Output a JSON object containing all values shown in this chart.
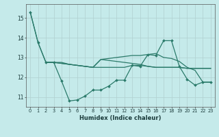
{
  "xlabel": "Humidex (Indice chaleur)",
  "xlim": [
    -0.5,
    23.5
  ],
  "ylim": [
    10.5,
    15.7
  ],
  "yticks": [
    11,
    12,
    13,
    14,
    15
  ],
  "xticks": [
    0,
    1,
    2,
    3,
    4,
    5,
    6,
    7,
    8,
    9,
    10,
    11,
    12,
    13,
    14,
    15,
    16,
    17,
    18,
    19,
    20,
    21,
    22,
    23
  ],
  "bg_color": "#c5eaea",
  "grid_color": "#b0d0d0",
  "line_color": "#2a7a6a",
  "lines": [
    {
      "x": [
        0,
        1,
        2,
        3,
        4,
        5,
        6,
        7,
        8,
        9,
        10,
        11,
        12,
        13,
        14,
        15,
        16,
        17,
        18,
        19,
        20,
        21,
        22,
        23
      ],
      "y": [
        15.3,
        13.75,
        12.75,
        12.75,
        11.8,
        10.8,
        10.85,
        11.05,
        11.35,
        11.35,
        11.55,
        11.85,
        11.85,
        12.6,
        12.55,
        13.15,
        13.1,
        13.85,
        13.85,
        12.55,
        11.9,
        11.6,
        11.75,
        11.75
      ],
      "marker": "D",
      "lw": 0.9
    },
    {
      "x": [
        0,
        1,
        2,
        3,
        4,
        5,
        6,
        7,
        8,
        9,
        10,
        11,
        12,
        13,
        14,
        15,
        16,
        17,
        18,
        19,
        20,
        21,
        22,
        23
      ],
      "y": [
        15.3,
        13.75,
        12.75,
        12.75,
        12.75,
        12.65,
        12.6,
        12.55,
        12.5,
        12.5,
        12.5,
        12.5,
        12.5,
        12.6,
        12.6,
        12.55,
        12.5,
        12.5,
        12.5,
        12.5,
        12.45,
        12.45,
        12.45,
        12.45
      ],
      "marker": null,
      "lw": 0.9
    },
    {
      "x": [
        2,
        3,
        4,
        5,
        6,
        7,
        8,
        9,
        10,
        11,
        12,
        13,
        14,
        15,
        16,
        17,
        18,
        19,
        20,
        21,
        22,
        23
      ],
      "y": [
        12.75,
        12.75,
        12.7,
        12.65,
        12.6,
        12.55,
        12.5,
        12.9,
        12.95,
        13.0,
        13.05,
        13.1,
        13.1,
        13.15,
        13.2,
        13.0,
        12.95,
        12.8,
        12.5,
        12.35,
        11.75,
        11.75
      ],
      "marker": null,
      "lw": 0.9
    },
    {
      "x": [
        2,
        3,
        4,
        5,
        6,
        7,
        8,
        9,
        10,
        11,
        12,
        13,
        14,
        15,
        16,
        17,
        18,
        19,
        20,
        21,
        22,
        23
      ],
      "y": [
        12.75,
        12.75,
        12.7,
        12.65,
        12.6,
        12.55,
        12.5,
        12.9,
        12.85,
        12.8,
        12.75,
        12.7,
        12.65,
        12.55,
        12.5,
        12.5,
        12.5,
        12.5,
        12.45,
        12.45,
        12.45,
        12.45
      ],
      "marker": null,
      "lw": 0.9
    }
  ]
}
